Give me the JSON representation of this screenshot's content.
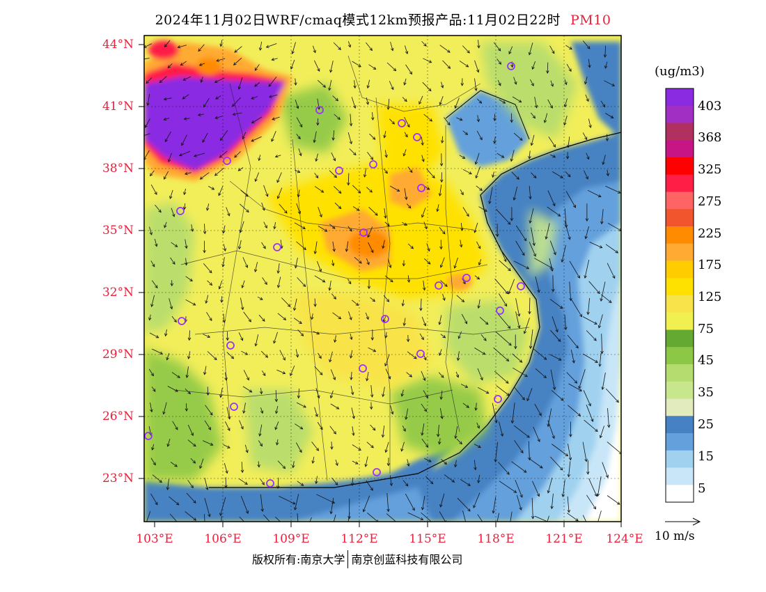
{
  "title": {
    "main": "2024年11月02日WRF/cmaq模式12km预报产品:11月02日22时",
    "pollutant": "PM10"
  },
  "latitude_labels": [
    {
      "text": "44°N",
      "value": 44
    },
    {
      "text": "41°N",
      "value": 41
    },
    {
      "text": "38°N",
      "value": 38
    },
    {
      "text": "35°N",
      "value": 35
    },
    {
      "text": "32°N",
      "value": 32
    },
    {
      "text": "29°N",
      "value": 29
    },
    {
      "text": "26°N",
      "value": 26
    },
    {
      "text": "23°N",
      "value": 23
    }
  ],
  "longitude_labels": [
    {
      "text": "103°E",
      "value": 103
    },
    {
      "text": "106°E",
      "value": 106
    },
    {
      "text": "109°E",
      "value": 109
    },
    {
      "text": "112°E",
      "value": 112
    },
    {
      "text": "115°E",
      "value": 115
    },
    {
      "text": "118°E",
      "value": 118
    },
    {
      "text": "121°E",
      "value": 121
    },
    {
      "text": "124°E",
      "value": 124
    }
  ],
  "map_extent": {
    "lon_min": 103,
    "lon_max": 124,
    "lat_min": 21,
    "lat_max": 44.5
  },
  "colorbar": {
    "unit": "(ug/m3)",
    "levels": [
      "403",
      "368",
      "325",
      "275",
      "225",
      "175",
      "125",
      "75",
      "45",
      "35",
      "25",
      "15",
      "5"
    ],
    "colors_top_to_bottom": [
      "#8a2be2",
      "#a12fc4",
      "#b03060",
      "#c71585",
      "#ff0000",
      "#ff1e46",
      "#ff6464",
      "#f0552d",
      "#ff8c00",
      "#ffaa32",
      "#ffcc00",
      "#ffe100",
      "#f8e44a",
      "#f0f050",
      "#64aa32",
      "#8cc846",
      "#b4dc6e",
      "#c8e68c",
      "#e1ebbe",
      "#4682c3",
      "#64a0dc",
      "#a0d2f0",
      "#c8e6f8",
      "#ffffff"
    ]
  },
  "wind_reference": {
    "label": "10 m/s"
  },
  "footer": {
    "left": "版权所有:南京大学",
    "right": "南京创蓝科技有限公司"
  },
  "colors": {
    "label_red": "#e8203a",
    "city_marker": "#9b30ff"
  }
}
